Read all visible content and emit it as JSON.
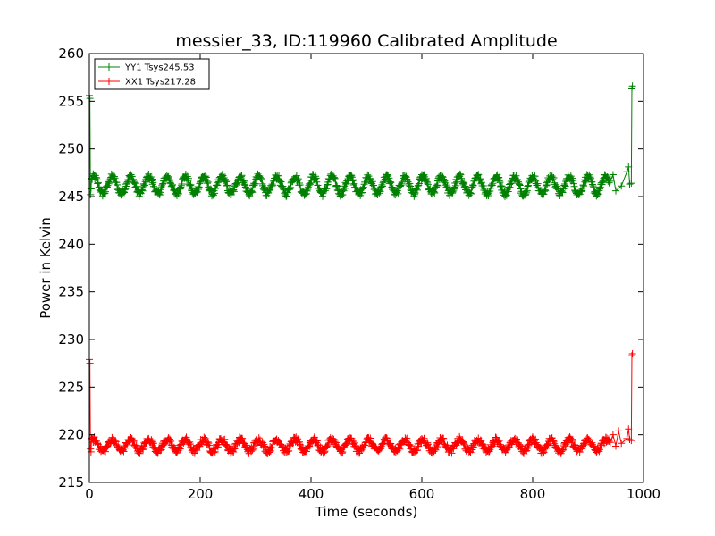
{
  "chart_data": {
    "type": "line",
    "title": "messier_33, ID:119960 Calibrated Amplitude",
    "xlabel": "Time (seconds)",
    "ylabel": "Power in Kelvin",
    "xlim": [
      0,
      1000
    ],
    "ylim": [
      215,
      260
    ],
    "xticks": [
      0,
      200,
      400,
      600,
      800,
      1000
    ],
    "yticks": [
      215,
      220,
      225,
      230,
      235,
      240,
      245,
      250,
      255,
      260
    ],
    "grid": false,
    "legend_position": "top-left",
    "marker": "+",
    "series": [
      {
        "name": "YY1 Tsys245.53",
        "color": "#008000",
        "baseline": 246.2,
        "oscillation_amplitude": 0.9,
        "oscillation_period_seconds": 33,
        "x_range": [
          2,
          978
        ],
        "start_points": [
          [
            0,
            255.6
          ],
          [
            1,
            255.3
          ],
          [
            2,
            245.2
          ],
          [
            3,
            245.8
          ]
        ],
        "end_points": [
          [
            940,
            246.6
          ],
          [
            945,
            247.3
          ],
          [
            950,
            245.6
          ],
          [
            960,
            246.1
          ],
          [
            970,
            247.6
          ],
          [
            973,
            248.1
          ],
          [
            975,
            246.3
          ],
          [
            978,
            246.4
          ],
          [
            979,
            256.3
          ],
          [
            980,
            256.6
          ]
        ]
      },
      {
        "name": "XX1 Tsys217.28",
        "color": "#ff0000",
        "baseline": 218.9,
        "oscillation_amplitude": 0.6,
        "oscillation_period_seconds": 33,
        "x_range": [
          2,
          978
        ],
        "start_points": [
          [
            0,
            227.9
          ],
          [
            1,
            227.5
          ],
          [
            2,
            218.5
          ],
          [
            3,
            218.2
          ]
        ],
        "end_points": [
          [
            940,
            219.2
          ],
          [
            945,
            220.0
          ],
          [
            950,
            218.8
          ],
          [
            955,
            220.4
          ],
          [
            960,
            219.1
          ],
          [
            970,
            219.6
          ],
          [
            973,
            220.6
          ],
          [
            975,
            219.5
          ],
          [
            978,
            219.4
          ],
          [
            979,
            228.3
          ],
          [
            980,
            228.5
          ]
        ]
      }
    ]
  }
}
